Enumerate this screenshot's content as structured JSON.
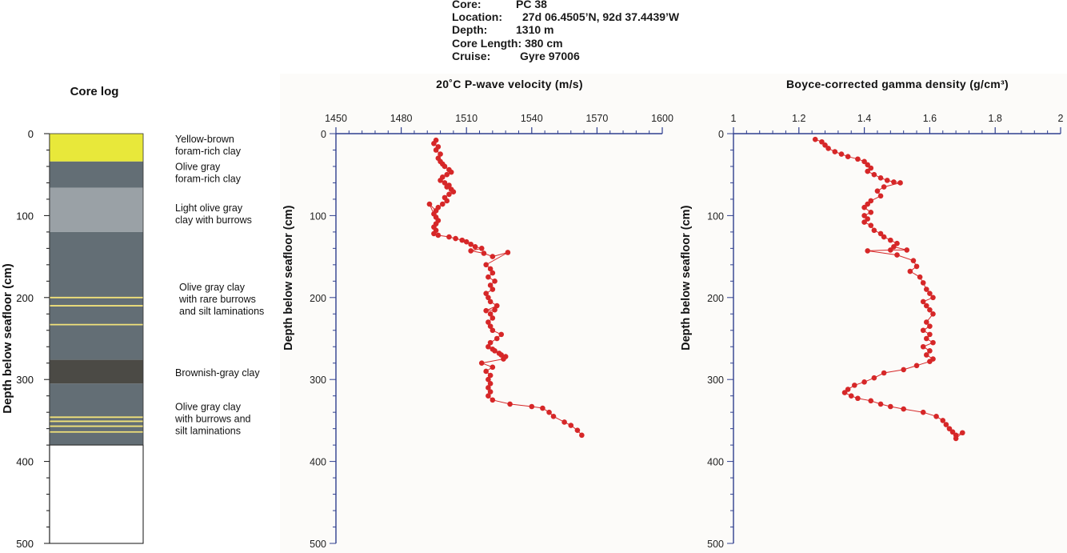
{
  "header": {
    "rows": [
      {
        "label": "Core:",
        "value": "PC 38"
      },
      {
        "label": "Location:",
        "value": "27d 06.4505’N, 92d 37.4439’W"
      },
      {
        "label": "Depth:",
        "value": "1310 m"
      },
      {
        "label": "Core Length:",
        "value": "380 cm"
      },
      {
        "label": "Cruise:",
        "value": "Gyre 97006"
      }
    ]
  },
  "colors": {
    "point": "#d62728",
    "line": "#d62728",
    "axis": "#2f3f8f",
    "plot_bg": "#fcfbf9",
    "lamination": "#f2e27a"
  },
  "chart_data": [
    {
      "type": "stratigraphic-column",
      "title": "Core log",
      "ylabel": "Depth below seafloor (cm)",
      "ylim": [
        0,
        500
      ],
      "yticks": [
        0,
        100,
        200,
        300,
        400,
        500
      ],
      "core_length": 380,
      "units": [
        {
          "top": 0,
          "bottom": 34,
          "color": "#e8e83a",
          "label": "Yellow-brown\nforam-rich clay",
          "label_depth": 14
        },
        {
          "top": 34,
          "bottom": 66,
          "color": "#636e75",
          "label": "Olive gray\nforam-rich clay",
          "label_depth": 48
        },
        {
          "top": 66,
          "bottom": 120,
          "color": "#9aa1a6",
          "label": "Light olive gray\nclay with burrows",
          "label_depth": 98
        },
        {
          "top": 120,
          "bottom": 276,
          "color": "#636e75",
          "label": "Olive gray clay\nwith rare burrows\nand silt laminations",
          "label_depth": 202
        },
        {
          "top": 276,
          "bottom": 305,
          "color": "#4b4a45",
          "label": "Brownish-gray clay",
          "label_depth": 292
        },
        {
          "top": 305,
          "bottom": 380,
          "color": "#636e75",
          "label": "Olive gray clay\nwith burrows and\nsilt laminations",
          "label_depth": 348
        }
      ],
      "laminations": [
        200,
        210,
        233,
        346,
        351,
        357,
        364
      ]
    },
    {
      "type": "line",
      "title": "20˚C P-wave velocity (m/s)",
      "ylabel": "Depth below seafloor (cm)",
      "xlim": [
        1450,
        1600
      ],
      "xticks": [
        1450,
        1480,
        1510,
        1540,
        1570,
        1600
      ],
      "ylim": [
        0,
        500
      ],
      "yticks": [
        0,
        100,
        200,
        300,
        400,
        500
      ],
      "x_position": "top",
      "series": [
        {
          "x": [
            1496,
            1495,
            1497,
            1496,
            1498,
            1497,
            1498,
            1499,
            1500,
            1502,
            1503,
            1501,
            1499,
            1498,
            1500,
            1502,
            1501,
            1503,
            1504,
            1502,
            1500,
            1501,
            1499,
            1497,
            1496,
            1493,
            1495,
            1496,
            1497,
            1496,
            1495,
            1496,
            1495,
            1497,
            1502,
            1505,
            1508,
            1510,
            1512,
            1514,
            1517,
            1512,
            1518,
            1522,
            1529,
            1519,
            1521,
            1522,
            1520,
            1523,
            1521,
            1522,
            1519,
            1520,
            1521,
            1524,
            1519,
            1523,
            1521,
            1522,
            1520,
            1521,
            1522,
            1526,
            1524,
            1521,
            1520,
            1522,
            1523,
            1525,
            1526,
            1528,
            1527,
            1517,
            1522,
            1519,
            1521,
            1520,
            1521,
            1520,
            1521,
            1520,
            1522,
            1530,
            1540,
            1545,
            1548,
            1550,
            1555,
            1558,
            1561,
            1563
          ],
          "y": [
            8,
            12,
            16,
            20,
            25,
            30,
            34,
            37,
            40,
            44,
            47,
            50,
            53,
            57,
            60,
            63,
            65,
            68,
            71,
            74,
            78,
            82,
            86,
            90,
            94,
            86,
            98,
            102,
            106,
            110,
            114,
            118,
            122,
            124,
            126,
            128,
            130,
            132,
            135,
            138,
            140,
            143,
            146,
            150,
            145,
            160,
            165,
            170,
            175,
            180,
            185,
            190,
            195,
            200,
            205,
            210,
            216,
            215,
            220,
            225,
            230,
            235,
            240,
            245,
            250,
            255,
            260,
            263,
            265,
            268,
            270,
            272,
            275,
            280,
            285,
            290,
            295,
            300,
            305,
            310,
            315,
            320,
            325,
            330,
            333,
            335,
            340,
            345,
            352,
            356,
            362,
            368
          ]
        }
      ]
    },
    {
      "type": "line",
      "title": "Boyce-corrected gamma density (g/cm³)",
      "ylabel": "Depth below seafloor (cm)",
      "xlim": [
        1,
        2
      ],
      "xticks": [
        1,
        1.2,
        1.4,
        1.6,
        1.8,
        2
      ],
      "ylim": [
        0,
        500
      ],
      "yticks": [
        0,
        100,
        200,
        300,
        400,
        500
      ],
      "x_position": "top",
      "series": [
        {
          "x": [
            1.25,
            1.27,
            1.28,
            1.29,
            1.31,
            1.33,
            1.35,
            1.38,
            1.4,
            1.41,
            1.42,
            1.41,
            1.43,
            1.45,
            1.47,
            1.49,
            1.51,
            1.46,
            1.44,
            1.45,
            1.42,
            1.41,
            1.4,
            1.42,
            1.4,
            1.41,
            1.4,
            1.42,
            1.43,
            1.45,
            1.46,
            1.48,
            1.5,
            1.49,
            1.53,
            1.48,
            1.41,
            1.5,
            1.55,
            1.56,
            1.54,
            1.57,
            1.58,
            1.59,
            1.6,
            1.61,
            1.58,
            1.59,
            1.6,
            1.61,
            1.59,
            1.6,
            1.58,
            1.6,
            1.59,
            1.61,
            1.58,
            1.6,
            1.59,
            1.61,
            1.6,
            1.56,
            1.52,
            1.46,
            1.43,
            1.4,
            1.37,
            1.35,
            1.34,
            1.36,
            1.38,
            1.42,
            1.45,
            1.48,
            1.52,
            1.58,
            1.62,
            1.64,
            1.65,
            1.66,
            1.67,
            1.68,
            1.7,
            1.68
          ],
          "y": [
            7,
            10,
            14,
            18,
            22,
            25,
            28,
            31,
            34,
            38,
            42,
            46,
            50,
            54,
            57,
            59,
            60,
            65,
            70,
            76,
            82,
            86,
            90,
            96,
            100,
            104,
            108,
            112,
            118,
            122,
            126,
            130,
            134,
            138,
            142,
            142,
            143,
            148,
            155,
            162,
            168,
            175,
            182,
            190,
            195,
            200,
            205,
            210,
            215,
            220,
            230,
            235,
            240,
            245,
            250,
            255,
            260,
            265,
            270,
            275,
            278,
            283,
            288,
            292,
            298,
            303,
            307,
            312,
            316,
            320,
            323,
            326,
            330,
            333,
            336,
            340,
            345,
            350,
            355,
            360,
            364,
            368,
            365,
            372
          ]
        }
      ]
    }
  ]
}
